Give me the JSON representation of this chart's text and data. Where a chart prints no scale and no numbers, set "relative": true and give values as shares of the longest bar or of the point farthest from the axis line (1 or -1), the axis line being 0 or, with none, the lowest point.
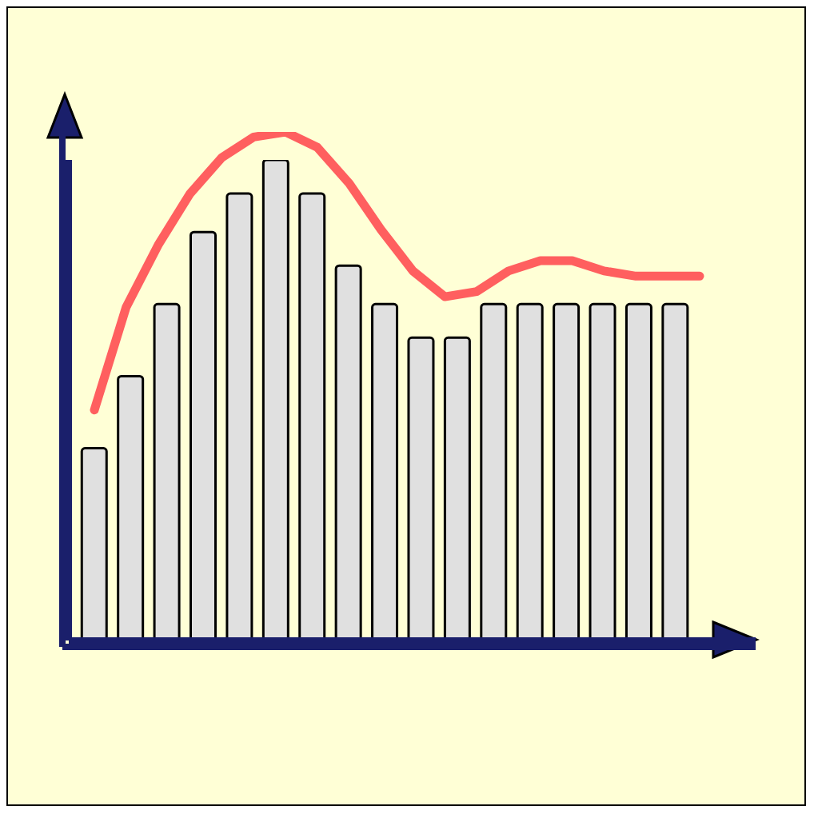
{
  "chart_data": [
    {
      "type": "bar",
      "relative": true,
      "categories": [
        null,
        null,
        null,
        null,
        null,
        null,
        null,
        null,
        null,
        null,
        null,
        null,
        null,
        null,
        null,
        null,
        null
      ],
      "color": "#e0e0e0",
      "values": [
        0.4,
        0.55,
        0.7,
        0.85,
        0.93,
        1,
        0.93,
        0.78,
        0.7,
        0.63,
        0.63,
        0.7,
        0.7,
        0.7,
        0.7,
        0.7,
        0.7
      ]
    },
    {
      "type": "line",
      "relative": true,
      "categories": [
        null,
        null,
        null,
        null,
        null,
        null,
        null,
        null,
        null,
        null,
        null,
        null,
        null,
        null,
        null,
        null,
        null,
        null,
        null,
        null
      ],
      "color": "#ff5f5f",
      "values": [
        0.46,
        0.66,
        0.78,
        0.88,
        0.95,
        0.99,
        1,
        0.97,
        0.9,
        0.81,
        0.73,
        0.68,
        0.69,
        0.73,
        0.75,
        0.75,
        0.73,
        0.72,
        0.72,
        0.72
      ]
    }
  ]
}
